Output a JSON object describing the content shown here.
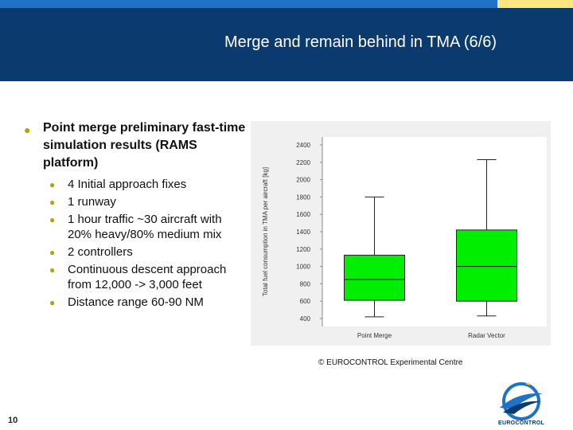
{
  "header": {
    "title": "Merge and remain behind in TMA (6/6)"
  },
  "bullets": {
    "main": "Point merge preliminary fast-time simulation results (RAMS platform)",
    "items": [
      "4 Initial approach fixes",
      "1 runway",
      "1 hour traffic ~30 aircraft with  20% heavy/80% medium mix",
      "2 controllers",
      "Continuous descent approach from 12,000 -> 3,000 feet",
      "Distance range 60-90 NM"
    ]
  },
  "chart_data": {
    "type": "boxplot",
    "ylabel": "Total fuel consumption in TMA per aircraft [kg]",
    "ylim": [
      400,
      2400
    ],
    "yticks": [
      400,
      600,
      800,
      1000,
      1200,
      1400,
      1600,
      1800,
      2000,
      2200,
      2400
    ],
    "categories": [
      "Point Merge",
      "Radar Vector"
    ],
    "boxes": [
      {
        "name": "Point Merge",
        "min": 420,
        "q1": 610,
        "median": 850,
        "q3": 1130,
        "max": 1800
      },
      {
        "name": "Radar Vector",
        "min": 430,
        "q1": 600,
        "median": 1000,
        "q3": 1420,
        "max": 2230
      }
    ],
    "box_color": "#00ee00"
  },
  "footer": {
    "copyright": "© EUROCONTROL Experimental Centre",
    "page_number": "10",
    "logo_text": "EUROCONTROL"
  }
}
